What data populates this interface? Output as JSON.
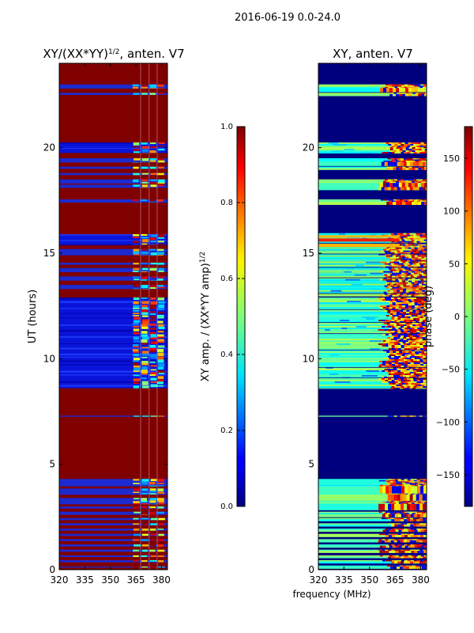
{
  "suptitle": "2016-06-19 0.0-24.0",
  "chart_data": [
    {
      "type": "heatmap",
      "title_main": "XY/(XX*YY)",
      "title_exp": "1/2",
      "title_tail": ", anten. V7",
      "xlabel": "",
      "ylabel": "UT (hours)",
      "xlim": [
        320,
        383.5
      ],
      "ylim": [
        0,
        24
      ],
      "xticks": [
        320,
        335,
        350,
        365,
        380
      ],
      "yticks": [
        0,
        5,
        10,
        15,
        20
      ],
      "colorbar": {
        "label_main": "XY amp. / (XX*YY amp)",
        "label_exp": "1/2",
        "range": [
          0.0,
          1.0
        ],
        "ticks": [
          "0.0",
          "0.2",
          "0.4",
          "0.6",
          "0.8",
          "1.0"
        ]
      },
      "colormap": "jet",
      "background_value": 1.0,
      "low_bands_hours": [
        [
          0.1,
          0.15
        ],
        [
          0.35,
          0.45
        ],
        [
          0.6,
          0.68
        ],
        [
          0.85,
          0.95
        ],
        [
          1.1,
          1.2
        ],
        [
          1.35,
          1.45
        ],
        [
          1.6,
          1.7
        ],
        [
          1.85,
          1.95
        ],
        [
          2.1,
          2.2
        ],
        [
          2.35,
          2.45
        ],
        [
          2.6,
          2.75
        ],
        [
          2.9,
          3.0
        ],
        [
          3.1,
          3.4
        ],
        [
          3.55,
          3.85
        ],
        [
          3.95,
          4.3
        ],
        [
          7.25,
          7.3
        ],
        [
          8.6,
          12.9
        ],
        [
          13.3,
          13.5
        ],
        [
          13.7,
          13.9
        ],
        [
          14.1,
          14.3
        ],
        [
          14.45,
          14.55
        ],
        [
          14.9,
          15.2
        ],
        [
          15.4,
          15.9
        ],
        [
          17.4,
          17.55
        ],
        [
          18.1,
          18.25
        ],
        [
          18.3,
          18.5
        ],
        [
          18.7,
          18.8
        ],
        [
          19.0,
          19.1
        ],
        [
          19.3,
          19.5
        ],
        [
          19.75,
          20.25
        ],
        [
          22.5,
          22.6
        ],
        [
          22.8,
          23.0
        ]
      ],
      "active_freq_ranges_mhz": [
        [
          363,
          367
        ],
        [
          368,
          372
        ],
        [
          373,
          377
        ],
        [
          377.5,
          381.5
        ]
      ]
    },
    {
      "type": "heatmap",
      "title_main": "XY, anten. V7",
      "xlabel": "frequency (MHz)",
      "ylabel": "",
      "xlim": [
        320,
        383.5
      ],
      "ylim": [
        0,
        24
      ],
      "xticks": [
        320,
        335,
        350,
        365,
        380
      ],
      "yticks": [
        0,
        5,
        10,
        15,
        20
      ],
      "colorbar": {
        "label_main": "phase (deg)",
        "range": [
          -180,
          180
        ],
        "ticks": [
          "150",
          "100",
          "50",
          "0",
          "−50",
          "−100",
          "−150"
        ]
      },
      "colormap": "jet",
      "background_value": -180,
      "active_bands_hours": [
        [
          0.1,
          0.2
        ],
        [
          0.35,
          0.45
        ],
        [
          0.6,
          0.68
        ],
        [
          0.85,
          0.95
        ],
        [
          1.1,
          1.2
        ],
        [
          1.35,
          1.45
        ],
        [
          1.6,
          1.7
        ],
        [
          1.85,
          1.95
        ],
        [
          2.1,
          2.2
        ],
        [
          2.35,
          2.45
        ],
        [
          2.6,
          2.75
        ],
        [
          2.9,
          3.0
        ],
        [
          3.1,
          3.4
        ],
        [
          3.55,
          3.85
        ],
        [
          3.95,
          4.3
        ],
        [
          7.25,
          7.3
        ],
        [
          8.6,
          12.9
        ],
        [
          13.0,
          15.95
        ],
        [
          17.4,
          17.55
        ],
        [
          18.1,
          18.25
        ],
        [
          18.3,
          18.5
        ],
        [
          19.0,
          19.1
        ],
        [
          19.3,
          19.5
        ],
        [
          19.75,
          20.25
        ],
        [
          22.5,
          22.6
        ],
        [
          22.8,
          23.0
        ]
      ],
      "phase_ramp_start_mhz": 355
    }
  ]
}
